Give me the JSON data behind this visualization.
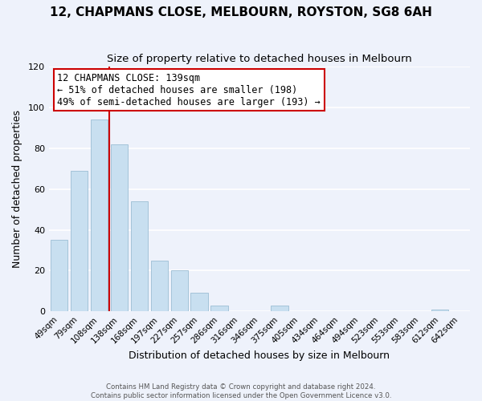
{
  "title": "12, CHAPMANS CLOSE, MELBOURN, ROYSTON, SG8 6AH",
  "subtitle": "Size of property relative to detached houses in Melbourn",
  "xlabel": "Distribution of detached houses by size in Melbourn",
  "ylabel": "Number of detached properties",
  "bar_labels": [
    "49sqm",
    "79sqm",
    "108sqm",
    "138sqm",
    "168sqm",
    "197sqm",
    "227sqm",
    "257sqm",
    "286sqm",
    "316sqm",
    "346sqm",
    "375sqm",
    "405sqm",
    "434sqm",
    "464sqm",
    "494sqm",
    "523sqm",
    "553sqm",
    "583sqm",
    "612sqm",
    "642sqm"
  ],
  "bar_values": [
    35,
    69,
    94,
    82,
    54,
    25,
    20,
    9,
    3,
    0,
    0,
    3,
    0,
    0,
    0,
    0,
    0,
    0,
    0,
    1,
    0
  ],
  "bar_color": "#c8dff0",
  "bar_edge_color": "#9bbdd4",
  "highlight_index": 3,
  "vline_color": "#cc0000",
  "ylim": [
    0,
    120
  ],
  "yticks": [
    0,
    20,
    40,
    60,
    80,
    100,
    120
  ],
  "annotation_title": "12 CHAPMANS CLOSE: 139sqm",
  "annotation_line1": "← 51% of detached houses are smaller (198)",
  "annotation_line2": "49% of semi-detached houses are larger (193) →",
  "annotation_box_color": "#ffffff",
  "annotation_box_edge_color": "#cc0000",
  "footer1": "Contains HM Land Registry data © Crown copyright and database right 2024.",
  "footer2": "Contains public sector information licensed under the Open Government Licence v3.0.",
  "background_color": "#eef2fb",
  "grid_color": "#ffffff",
  "title_fontsize": 11,
  "subtitle_fontsize": 9.5
}
